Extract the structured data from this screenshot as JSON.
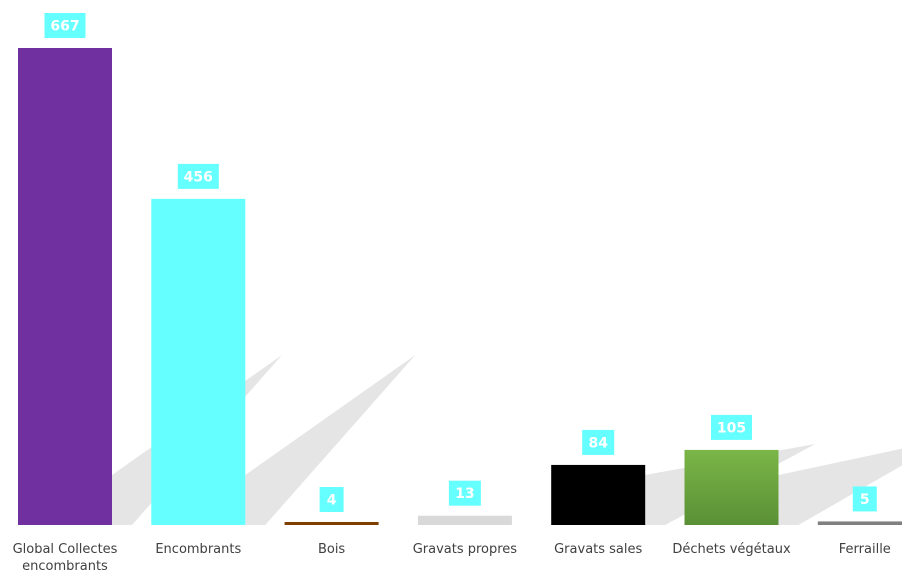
{
  "chart_data": {
    "type": "bar",
    "categories": [
      [
        "Global Collectes",
        "encombrants"
      ],
      [
        "Encombrants"
      ],
      [
        "Bois"
      ],
      [
        "Gravats propres"
      ],
      [
        "Gravats sales"
      ],
      [
        "Déchets végétaux"
      ],
      [
        "Ferraille"
      ]
    ],
    "values": [
      667,
      456,
      4,
      13,
      84,
      105,
      5
    ],
    "colors": [
      "#7030A0",
      "#66FFFF",
      "#7F3F00",
      "#D9D9D9",
      "#000000",
      "#70AD47",
      "#808080"
    ],
    "data_label_bg": "#66FFFF",
    "data_label_color": "#FFFFFF",
    "title": "",
    "xlabel": "",
    "ylabel": "",
    "ylim": [
      0,
      667
    ],
    "grid": false,
    "legend": "none"
  }
}
